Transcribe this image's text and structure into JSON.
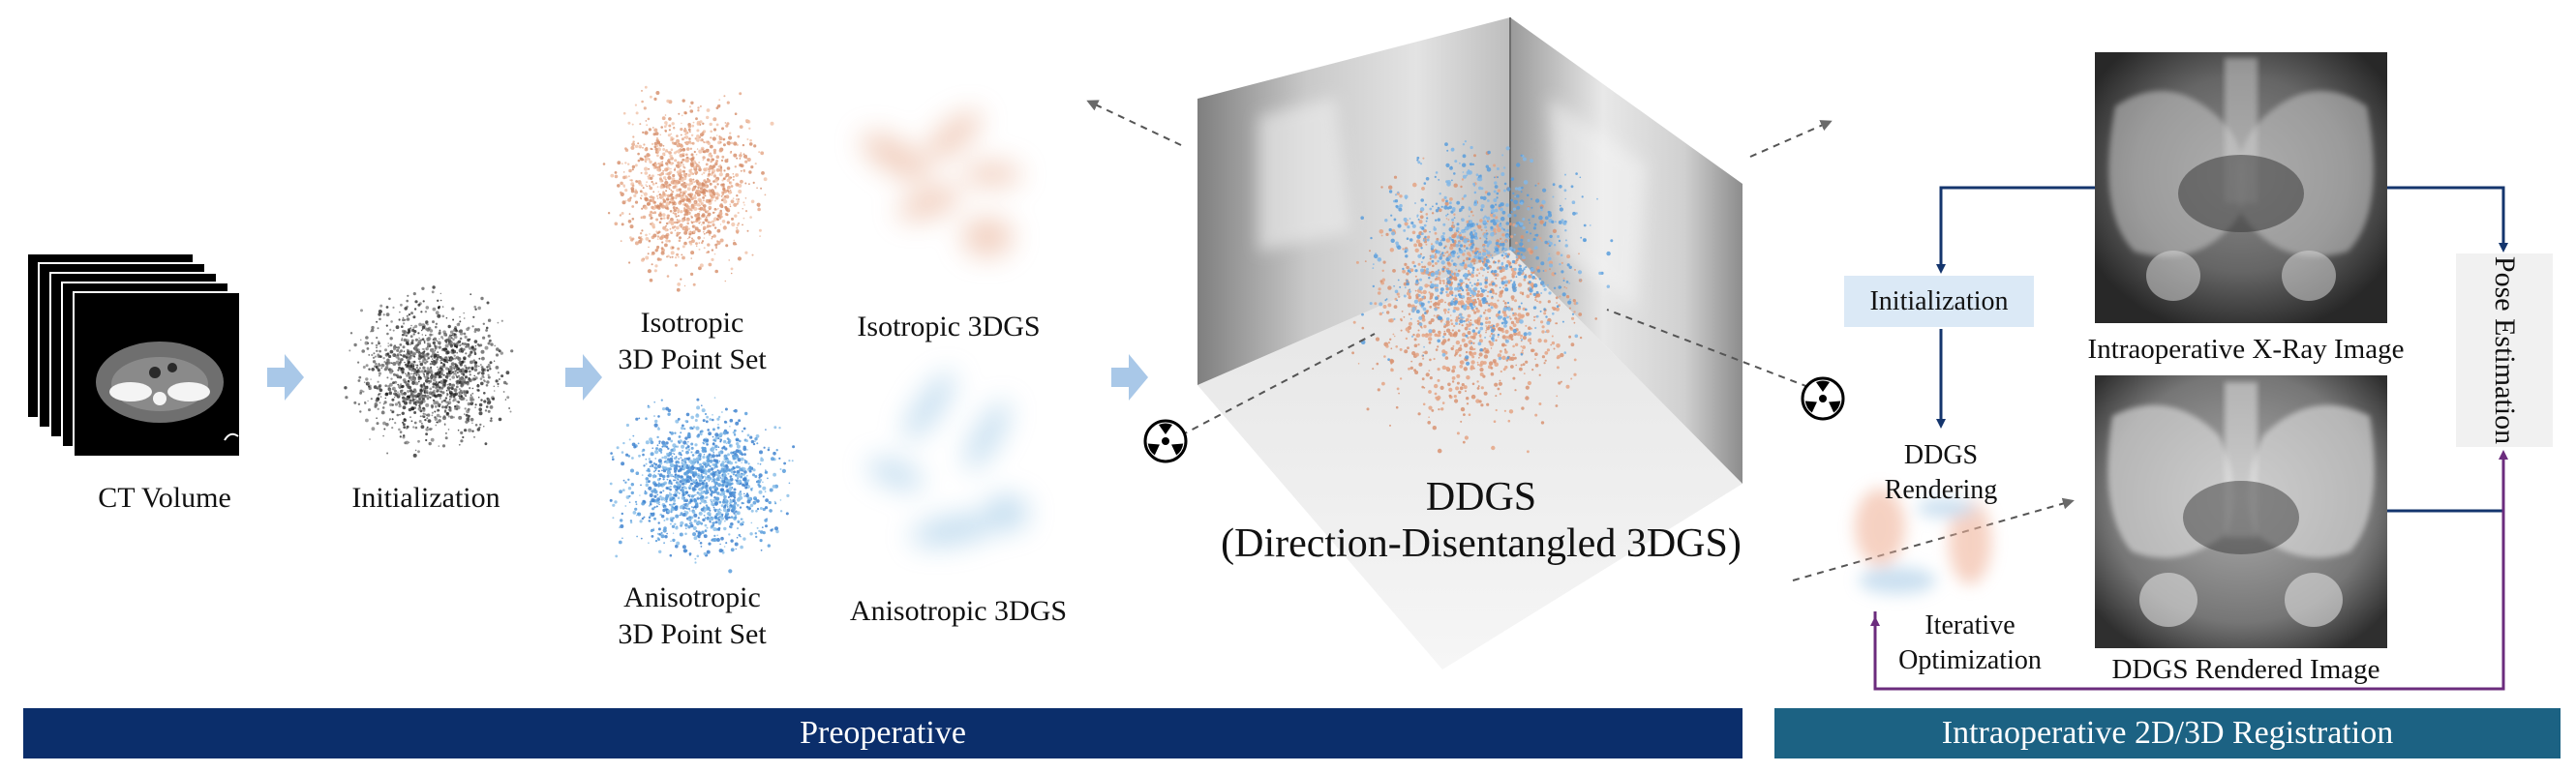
{
  "labels": {
    "ct_volume": "CT Volume",
    "initialization": "Initialization",
    "iso_point_set_1": "Isotropic",
    "iso_point_set_2": "3D Point Set",
    "aniso_point_set_1": "Anisotropic",
    "aniso_point_set_2": "3D Point Set",
    "iso_3dgs": "Isotropic 3DGS",
    "aniso_3dgs": "Anisotropic 3DGS",
    "ddgs_title": "DDGS",
    "ddgs_subtitle": "(Direction-Disentangled 3DGS)",
    "intra_init": "Initialization",
    "ddgs_rendering_1": "DDGS",
    "ddgs_rendering_2": "Rendering",
    "iterative_1": "Iterative",
    "iterative_2": "Optimization",
    "xray_image": "Intraoperative X-Ray Image",
    "rendered_image": "DDGS Rendered Image",
    "pose_estimation": "Pose Estimation"
  },
  "sections": {
    "preoperative": "Preoperative",
    "intraoperative": "Intraoperative 2D/3D Registration"
  },
  "colors": {
    "navy": "#0b2e6b",
    "teal": "#1c6283",
    "arrow_blue": "#14356d",
    "arrow_purple": "#6b2c7d",
    "iso_orange": "#e4a585",
    "aniso_blue": "#5b9ddc",
    "flow_arrow": "#a9c8e8",
    "init_box": "#dbe9f6"
  },
  "icons": [
    "ct-slice-stack-icon",
    "radiation-source-icon",
    "xray-image-icon",
    "rendered-image-icon"
  ]
}
